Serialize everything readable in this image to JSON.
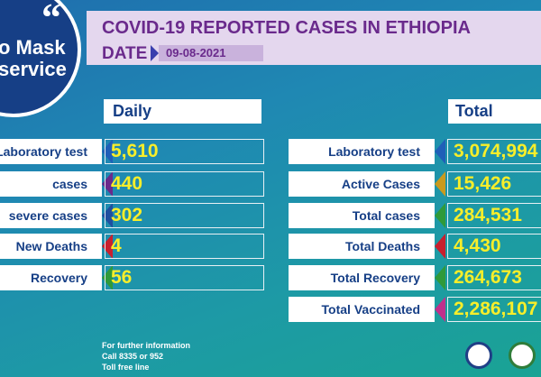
{
  "badge": {
    "line1": "o Mask",
    "line2": "service"
  },
  "header": {
    "title": "COVID-19 REPORTED CASES IN ETHIOPIA",
    "date_label": "DATE",
    "date": "09-08-2021"
  },
  "daily": {
    "heading": "Daily",
    "rows": [
      {
        "label": "Laboratory test",
        "value": "5,610"
      },
      {
        "label": "cases",
        "value": "440"
      },
      {
        "label": "severe cases",
        "value": "302"
      },
      {
        "label": "New Deaths",
        "value": "4"
      },
      {
        "label": "Recovery",
        "value": "56"
      }
    ]
  },
  "total": {
    "heading": "Total",
    "rows": [
      {
        "label": "Laboratory test",
        "value": "3,074,994"
      },
      {
        "label": "Active Cases",
        "value": "15,426"
      },
      {
        "label": "Total cases",
        "value": "284,531"
      },
      {
        "label": "Total Deaths",
        "value": "4,430"
      },
      {
        "label": "Total Recovery",
        "value": "264,673"
      },
      {
        "label": "Total Vaccinated",
        "value": "2,286,107"
      }
    ]
  },
  "footer": {
    "lines": [
      "For further information",
      "Call 8335 or 952",
      "Toll free line"
    ]
  }
}
